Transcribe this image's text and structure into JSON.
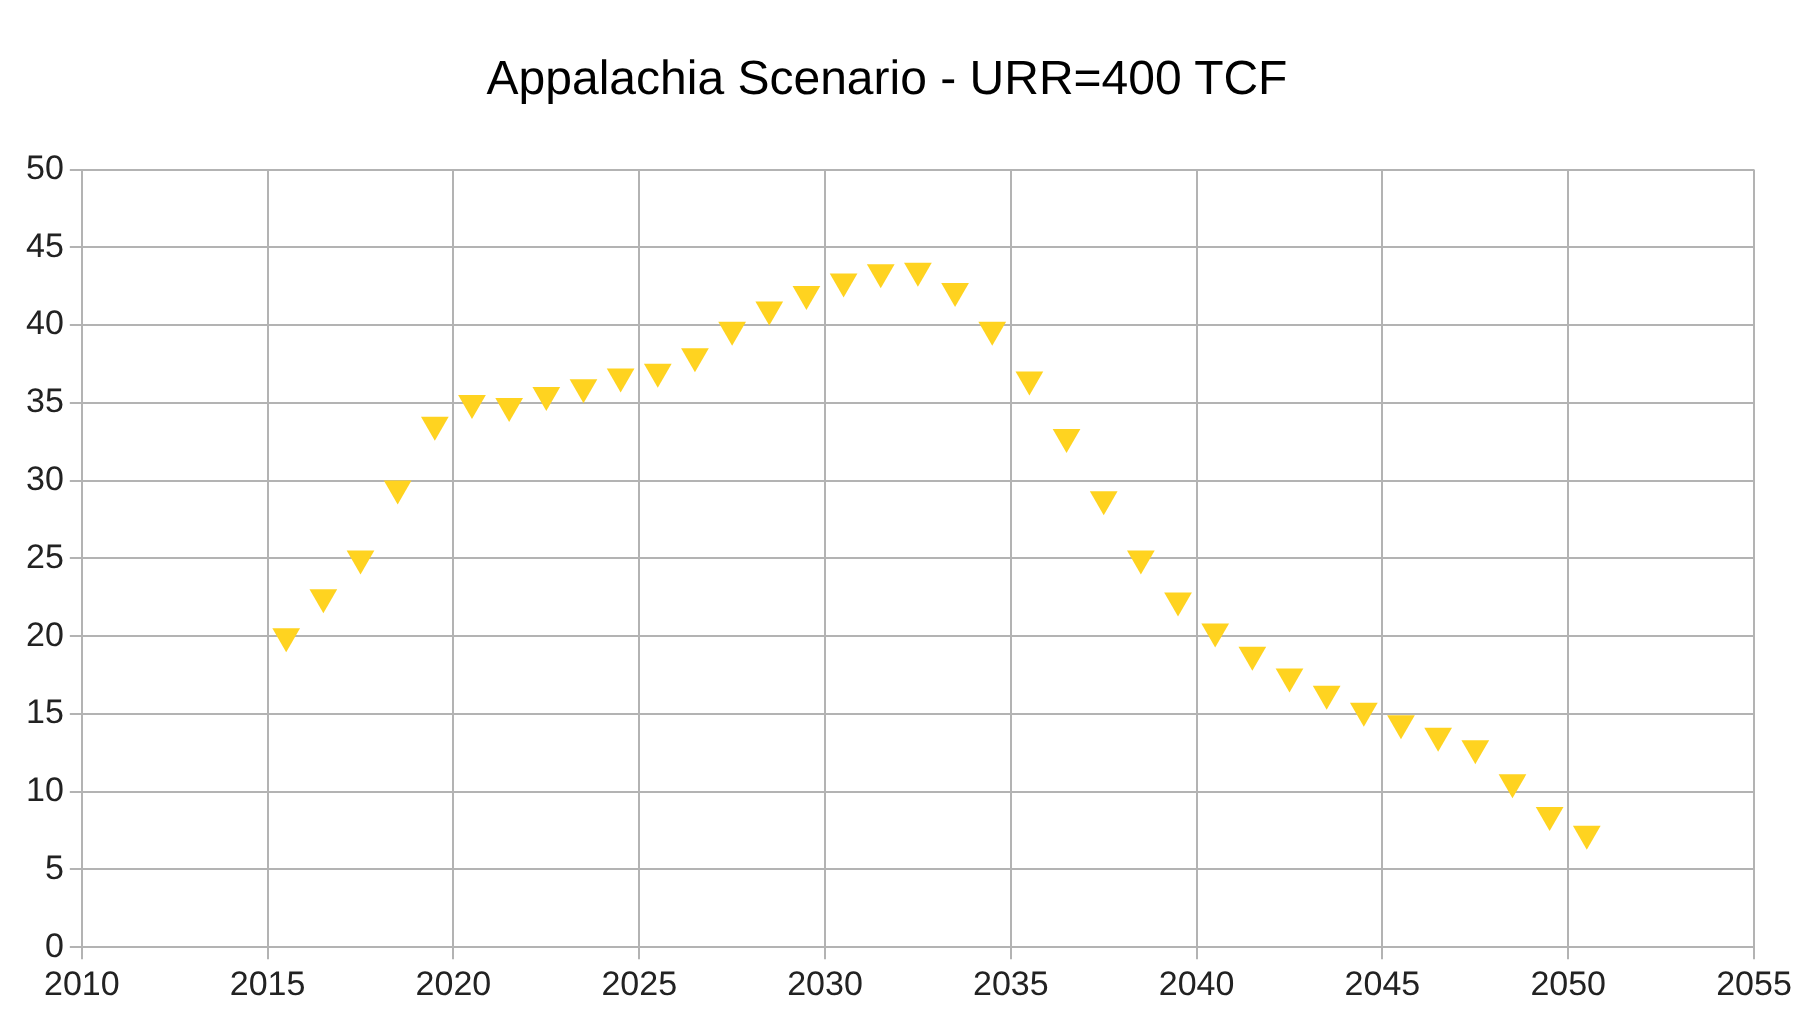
{
  "chart_data": {
    "type": "scatter",
    "title": "Appalachia Scenario - URR=400 TCF",
    "x": [
      2015.5,
      2016.5,
      2017.5,
      2018.5,
      2019.5,
      2020.5,
      2021.5,
      2022.5,
      2023.5,
      2024.5,
      2025.5,
      2026.5,
      2027.5,
      2028.5,
      2029.5,
      2030.5,
      2031.5,
      2032.5,
      2033.5,
      2034.5,
      2035.5,
      2036.5,
      2037.5,
      2038.5,
      2039.5,
      2040.5,
      2041.5,
      2042.5,
      2043.5,
      2044.5,
      2045.5,
      2046.5,
      2047.5,
      2048.5,
      2049.5,
      2050.5
    ],
    "series": [
      {
        "color": "#ffd320",
        "values": [
          20,
          22.5,
          25,
          29.5,
          33.6,
          35,
          34.8,
          35.5,
          36,
          36.7,
          37,
          38,
          39.7,
          41,
          42,
          42.8,
          43.4,
          43.5,
          42.2,
          39.7,
          36.5,
          32.8,
          28.8,
          25,
          22.3,
          20.3,
          18.8,
          17.4,
          16.3,
          15.2,
          14.4,
          13.6,
          12.8,
          10.6,
          8.5,
          7.3
        ]
      }
    ],
    "xlim": [
      2010,
      2055
    ],
    "xticks": [
      2010,
      2015,
      2020,
      2025,
      2030,
      2035,
      2040,
      2045,
      2050,
      2055
    ],
    "ylim": [
      0,
      50
    ],
    "yticks": [
      0,
      5,
      10,
      15,
      20,
      25,
      30,
      35,
      40,
      45,
      50
    ],
    "grid": true,
    "legend": false,
    "marker": "triangle"
  }
}
